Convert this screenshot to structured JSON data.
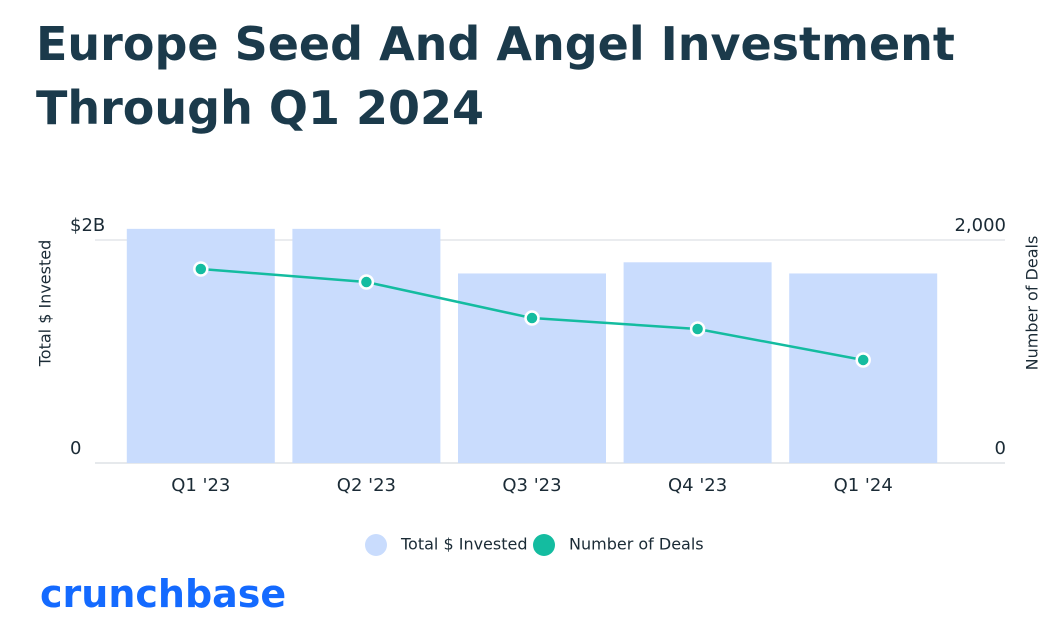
{
  "chart_data": {
    "type": "bar",
    "title": "Europe Seed And Angel Investment Through Q1 2024",
    "categories": [
      "Q1 '23",
      "Q2 '23",
      "Q3 '23",
      "Q4 '23",
      "Q1 '24"
    ],
    "series": [
      {
        "name": "Total $ Invested",
        "type": "bar",
        "color": "#c9dcfd",
        "values": [
          2.1,
          2.1,
          1.7,
          1.8,
          1.7
        ]
      },
      {
        "name": "Number of Deals",
        "type": "line",
        "axis": "y2",
        "color": "#14bca0",
        "values": [
          1740,
          1623,
          1300,
          1202,
          924
        ]
      }
    ],
    "ylabel": "Total $ Invested",
    "y2label": "Number of Deals",
    "ylim": [
      0,
      2
    ],
    "yticks": [
      0,
      {
        "value": 2,
        "label": "$2B"
      }
    ],
    "y2lim": [
      0,
      2000
    ],
    "y2ticks": [
      0,
      {
        "value": 2000,
        "label": "2,000"
      }
    ],
    "grid": true,
    "legend": "bottom",
    "logo": "crunchbase"
  }
}
